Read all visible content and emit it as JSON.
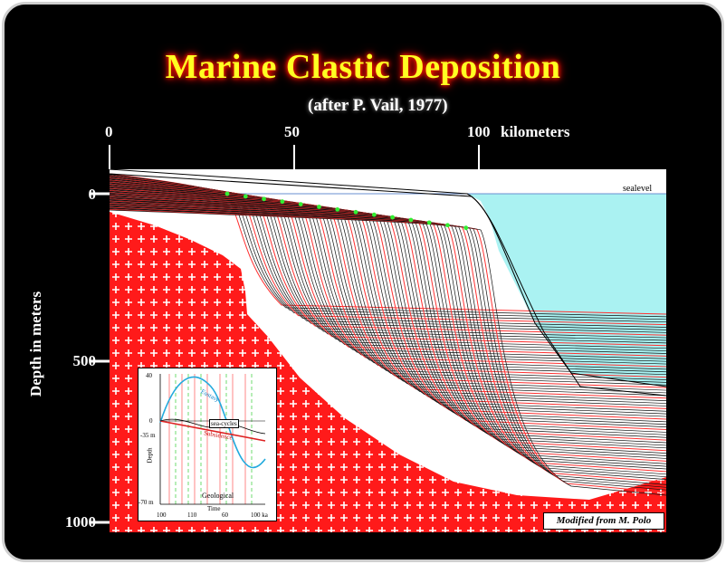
{
  "title": "Marine Clastic Deposition",
  "subtitle": "(after P. Vail, 1977)",
  "x_axis": {
    "ticks": [
      "0",
      "50",
      "100"
    ],
    "unit": "kilometers"
  },
  "y_axis": {
    "title": "Depth in meters",
    "ticks": [
      "0",
      "500",
      "1000"
    ]
  },
  "annotations": {
    "sealevel": "sealevel",
    "credit": "Modified from M. Polo"
  },
  "inset": {
    "curve_labels": [
      "Eustasy",
      "Subsidence"
    ],
    "x_axis_title": "Time",
    "geologic_label": "Geological",
    "y_axis_title": "Depth",
    "y_ticks": [
      "40",
      "0",
      "-35 m",
      "-70 m"
    ],
    "x_ticks": [
      "100",
      "110",
      "60",
      "100 ka"
    ],
    "sea_label": "sea-cycles"
  },
  "colors": {
    "background": "#000000",
    "title": "#ffff22",
    "title_glow": "#ff2200",
    "basement": "#ff1a1a",
    "sea": "#aaf2f2",
    "clinoform_dark": "#111111",
    "clinoform_red": "#ff3030",
    "shoreline_dot": "#33ee33"
  }
}
